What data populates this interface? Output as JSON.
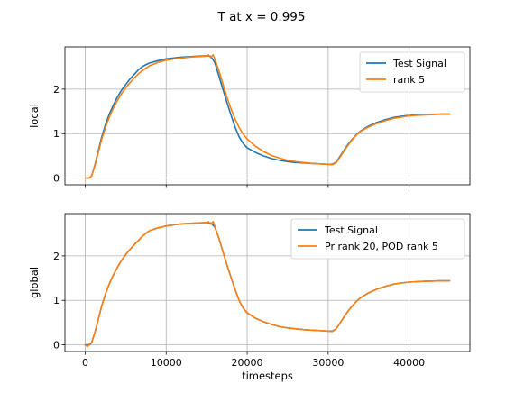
{
  "title": "T at x = 0.995",
  "chart_data": [
    {
      "type": "line",
      "ylabel": "local",
      "xlabel": "",
      "xlim": [
        -2500,
        47500
      ],
      "ylim": [
        -0.15,
        2.95
      ],
      "yticks": [
        0,
        1,
        2
      ],
      "xticks": [
        0,
        10000,
        20000,
        30000,
        40000
      ],
      "show_xtick_labels": false,
      "grid": true,
      "legend": "top-right",
      "series": [
        {
          "name": "Test Signal",
          "color": "#1f77b4",
          "x": [
            0,
            500,
            800,
            1200,
            1600,
            2000,
            2500,
            3000,
            3500,
            4000,
            4500,
            5000,
            5500,
            6000,
            6500,
            7000,
            7500,
            8000,
            9000,
            10000,
            11000,
            12000,
            13000,
            14000,
            15000,
            15500,
            16000,
            16500,
            17000,
            17500,
            18000,
            18500,
            19000,
            19500,
            20000,
            21000,
            22000,
            23000,
            24000,
            25000,
            26000,
            27000,
            28000,
            29000,
            30000,
            30500,
            31000,
            31500,
            32000,
            32500,
            33000,
            33500,
            34000,
            35000,
            36000,
            37000,
            38000,
            39000,
            40000,
            41000,
            42000,
            43000,
            44000,
            45000
          ],
          "y": [
            0.0,
            0.0,
            0.05,
            0.3,
            0.6,
            0.9,
            1.2,
            1.45,
            1.65,
            1.83,
            1.98,
            2.1,
            2.22,
            2.32,
            2.42,
            2.5,
            2.55,
            2.59,
            2.64,
            2.68,
            2.7,
            2.72,
            2.73,
            2.74,
            2.75,
            2.74,
            2.6,
            2.3,
            2.0,
            1.7,
            1.42,
            1.15,
            0.93,
            0.78,
            0.68,
            0.58,
            0.5,
            0.44,
            0.4,
            0.37,
            0.35,
            0.34,
            0.33,
            0.32,
            0.31,
            0.31,
            0.36,
            0.5,
            0.64,
            0.77,
            0.88,
            0.98,
            1.06,
            1.17,
            1.25,
            1.31,
            1.36,
            1.39,
            1.41,
            1.42,
            1.43,
            1.435,
            1.44,
            1.44
          ]
        },
        {
          "name": "rank 5",
          "color": "#ff7f0e",
          "x": [
            0,
            500,
            800,
            1200,
            1600,
            2000,
            2500,
            3000,
            3500,
            4000,
            4500,
            5000,
            5500,
            6000,
            6500,
            7000,
            7500,
            8000,
            9000,
            10000,
            11000,
            12000,
            13000,
            14000,
            15000,
            15200,
            15500,
            15800,
            16000,
            16500,
            17000,
            17500,
            18000,
            18500,
            19000,
            19500,
            20000,
            21000,
            22000,
            23000,
            24000,
            25000,
            26000,
            27000,
            28000,
            29000,
            30000,
            30500,
            31000,
            31500,
            32000,
            32500,
            33000,
            33500,
            34000,
            35000,
            36000,
            37000,
            38000,
            39000,
            40000,
            41000,
            42000,
            43000,
            44000,
            45000
          ],
          "y": [
            0.0,
            0.0,
            0.05,
            0.28,
            0.56,
            0.85,
            1.14,
            1.38,
            1.58,
            1.75,
            1.9,
            2.03,
            2.14,
            2.24,
            2.33,
            2.41,
            2.47,
            2.53,
            2.6,
            2.65,
            2.68,
            2.7,
            2.72,
            2.73,
            2.74,
            2.77,
            2.71,
            2.77,
            2.68,
            2.42,
            2.12,
            1.82,
            1.56,
            1.33,
            1.14,
            0.99,
            0.88,
            0.72,
            0.6,
            0.51,
            0.45,
            0.4,
            0.37,
            0.35,
            0.33,
            0.32,
            0.31,
            0.3,
            0.35,
            0.48,
            0.62,
            0.75,
            0.87,
            0.97,
            1.05,
            1.15,
            1.23,
            1.29,
            1.34,
            1.37,
            1.4,
            1.41,
            1.42,
            1.43,
            1.44,
            1.44
          ]
        }
      ]
    },
    {
      "type": "line",
      "ylabel": "global",
      "xlabel": "timesteps",
      "xlim": [
        -2500,
        47500
      ],
      "ylim": [
        -0.15,
        2.95
      ],
      "yticks": [
        0,
        1,
        2
      ],
      "xticks": [
        0,
        10000,
        20000,
        30000,
        40000
      ],
      "show_xtick_labels": true,
      "grid": true,
      "legend": "top-right",
      "series": [
        {
          "name": "Test Signal",
          "color": "#1f77b4",
          "x": [
            0,
            500,
            800,
            1200,
            1600,
            2000,
            2500,
            3000,
            3500,
            4000,
            4500,
            5000,
            5500,
            6000,
            6500,
            7000,
            7500,
            8000,
            9000,
            10000,
            11000,
            12000,
            13000,
            14000,
            15000,
            15500,
            16000,
            16500,
            17000,
            17500,
            18000,
            18500,
            19000,
            19500,
            20000,
            21000,
            22000,
            23000,
            24000,
            25000,
            26000,
            27000,
            28000,
            29000,
            30000,
            30500,
            31000,
            31500,
            32000,
            32500,
            33000,
            33500,
            34000,
            35000,
            36000,
            37000,
            38000,
            39000,
            40000,
            41000,
            42000,
            43000,
            44000,
            45000
          ],
          "y": [
            0.0,
            0.0,
            0.05,
            0.28,
            0.56,
            0.85,
            1.14,
            1.38,
            1.58,
            1.75,
            1.9,
            2.03,
            2.14,
            2.24,
            2.33,
            2.43,
            2.51,
            2.57,
            2.63,
            2.67,
            2.7,
            2.72,
            2.73,
            2.74,
            2.75,
            2.74,
            2.65,
            2.4,
            2.1,
            1.8,
            1.52,
            1.25,
            1.0,
            0.83,
            0.72,
            0.6,
            0.52,
            0.46,
            0.41,
            0.38,
            0.36,
            0.34,
            0.33,
            0.32,
            0.31,
            0.31,
            0.36,
            0.5,
            0.64,
            0.77,
            0.88,
            0.98,
            1.06,
            1.17,
            1.25,
            1.31,
            1.36,
            1.39,
            1.41,
            1.42,
            1.43,
            1.435,
            1.44,
            1.44
          ]
        },
        {
          "name": "Pr rank 20, POD rank 5",
          "color": "#ff7f0e",
          "x": [
            0,
            300,
            500,
            800,
            1200,
            1600,
            2000,
            2500,
            3000,
            3500,
            4000,
            4500,
            5000,
            5500,
            6000,
            6500,
            7000,
            7500,
            8000,
            9000,
            10000,
            11000,
            12000,
            13000,
            14000,
            15000,
            15200,
            15500,
            15800,
            16000,
            16500,
            17000,
            17500,
            18000,
            18500,
            19000,
            19500,
            20000,
            21000,
            22000,
            23000,
            24000,
            25000,
            26000,
            27000,
            28000,
            29000,
            30000,
            30500,
            31000,
            31500,
            32000,
            32500,
            33000,
            33500,
            34000,
            35000,
            36000,
            37000,
            38000,
            39000,
            40000,
            41000,
            42000,
            43000,
            44000,
            45000
          ],
          "y": [
            0.0,
            -0.04,
            0.02,
            0.05,
            0.28,
            0.56,
            0.85,
            1.14,
            1.38,
            1.58,
            1.75,
            1.9,
            2.03,
            2.14,
            2.24,
            2.33,
            2.43,
            2.51,
            2.57,
            2.63,
            2.67,
            2.7,
            2.72,
            2.73,
            2.74,
            2.75,
            2.77,
            2.72,
            2.77,
            2.67,
            2.4,
            2.1,
            1.8,
            1.52,
            1.25,
            1.0,
            0.83,
            0.72,
            0.6,
            0.52,
            0.46,
            0.41,
            0.38,
            0.36,
            0.34,
            0.33,
            0.32,
            0.31,
            0.3,
            0.36,
            0.5,
            0.64,
            0.77,
            0.88,
            0.98,
            1.06,
            1.17,
            1.25,
            1.31,
            1.36,
            1.39,
            1.41,
            1.42,
            1.43,
            1.435,
            1.44,
            1.44
          ]
        }
      ]
    }
  ]
}
